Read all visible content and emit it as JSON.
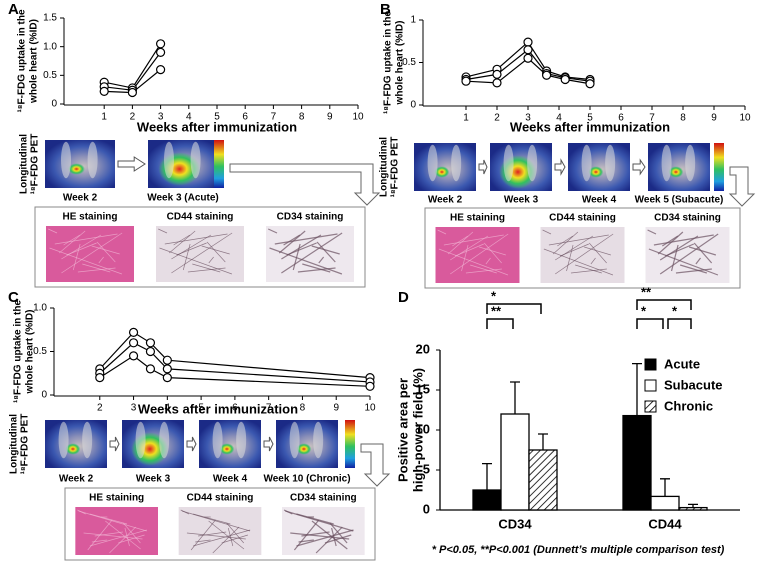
{
  "chart_data": [
    {
      "type": "line",
      "panel": "A",
      "ylabel": [
        "¹⁸F-FDG uptake in the",
        "whole heart (%ID)"
      ],
      "xlabel": "Weeks after immunization",
      "x": [
        1,
        2,
        3
      ],
      "series": [
        {
          "color": "#000000",
          "values": [
            0.38,
            0.28,
            1.05
          ]
        },
        {
          "color": "#000000",
          "values": [
            0.3,
            0.24,
            0.9
          ]
        },
        {
          "color": "#000000",
          "values": [
            0.22,
            0.2,
            0.6
          ]
        }
      ],
      "xlim": [
        0,
        10
      ],
      "xticks": [
        1,
        2,
        3,
        4,
        5,
        6,
        7,
        8,
        9,
        10
      ],
      "ylim": [
        0,
        1.5
      ],
      "yticks": [
        0,
        0.5,
        {
          "value": 1,
          "label": "1.0"
        },
        1.5
      ],
      "pet_label": [
        "Longitudinal",
        "¹⁸F-FDG PET"
      ],
      "pet_captions": [
        "Week 2",
        "Week 3 (Acute)"
      ],
      "caption_colors": [
        "#000000",
        "#d8322c"
      ],
      "staining": [
        "HE staining",
        "CD44 staining",
        "CD34 staining"
      ]
    },
    {
      "type": "line",
      "panel": "B",
      "ylabel": [
        "¹⁸F-FDG uptake in the",
        "whole heart (%ID)"
      ],
      "xlabel": "Weeks after immunization",
      "x": [
        1,
        2,
        3,
        3.6,
        4.2,
        5
      ],
      "series": [
        {
          "color": "#000000",
          "values": [
            0.33,
            0.42,
            0.74,
            0.4,
            0.33,
            0.3
          ]
        },
        {
          "color": "#000000",
          "values": [
            0.3,
            0.36,
            0.65,
            0.37,
            0.32,
            0.28
          ]
        },
        {
          "color": "#000000",
          "values": [
            0.28,
            0.26,
            0.55,
            0.35,
            0.3,
            0.25
          ]
        }
      ],
      "xlim": [
        0,
        10
      ],
      "xticks": [
        1,
        2,
        3,
        4,
        5,
        6,
        7,
        8,
        9,
        10
      ],
      "ylim": [
        0,
        1
      ],
      "yticks": [
        0,
        0.5,
        1
      ],
      "pet_label": [
        "Longitudinal",
        "¹⁸F-FDG PET"
      ],
      "pet_captions": [
        "Week 2",
        "Week 3",
        "Week 4",
        "Week 5 (Subacute)"
      ],
      "caption_colors": [
        "#000000",
        "#000000",
        "#000000",
        "#d8322c"
      ],
      "staining": [
        "HE staining",
        "CD44 staining",
        "CD34 staining"
      ]
    },
    {
      "type": "line",
      "panel": "C",
      "ylabel": [
        "¹⁸F-FDG uptake in the",
        "whole heart (%ID)"
      ],
      "xlabel": "Weeks after immunization",
      "x": [
        2,
        3,
        3.5,
        4,
        10
      ],
      "series": [
        {
          "color": "#000000",
          "values": [
            0.3,
            0.72,
            0.6,
            0.4,
            0.2
          ]
        },
        {
          "color": "#000000",
          "values": [
            0.25,
            0.6,
            0.5,
            0.3,
            0.15
          ]
        },
        {
          "color": "#000000",
          "values": [
            0.2,
            0.45,
            0.3,
            0.2,
            0.1
          ]
        }
      ],
      "xlim": [
        1,
        10
      ],
      "xticks": [
        2,
        3,
        4,
        5,
        6,
        7,
        8,
        9,
        10
      ],
      "ylim": [
        0,
        1
      ],
      "yticks": [
        0,
        0.5,
        {
          "value": 1,
          "label": "1.0"
        }
      ],
      "pet_label": [
        "Longitudinal",
        "¹⁸F-FDG PET"
      ],
      "pet_captions": [
        "Week 2",
        "Week 3",
        "Week 4",
        "Week 10 (Chronic)"
      ],
      "caption_colors": [
        "#000000",
        "#000000",
        "#000000",
        "#d8322c"
      ],
      "staining": [
        "HE staining",
        "CD44 staining",
        "CD34 staining"
      ]
    },
    {
      "type": "bar",
      "panel": "D",
      "ylabel": [
        "Positive area per",
        "high-power field (%)"
      ],
      "categories": [
        "CD34",
        "CD44"
      ],
      "series": [
        {
          "name": "Acute",
          "color": "#000000",
          "values": [
            2.5,
            11.8
          ],
          "errors": [
            3.3,
            6.5
          ]
        },
        {
          "name": "Subacute",
          "color": "#ffffff",
          "values": [
            12,
            1.7
          ],
          "errors": [
            4,
            2.2
          ]
        },
        {
          "name": "Chronic",
          "color": "#ffffff",
          "pattern": "hatch",
          "values": [
            7.5,
            0.3
          ],
          "errors": [
            2,
            0.4
          ]
        }
      ],
      "ylim": [
        0,
        20
      ],
      "yticks": [
        0,
        5,
        10,
        15,
        20
      ],
      "significance": [
        {
          "group": 0,
          "pair": [
            0,
            2
          ],
          "label": "*"
        },
        {
          "group": 0,
          "pair": [
            0,
            1
          ],
          "label": "**"
        },
        {
          "group": 1,
          "pair": [
            0,
            2
          ],
          "label": "**"
        },
        {
          "group": 1,
          "pair": [
            0,
            1
          ],
          "label": "*"
        },
        {
          "group": 1,
          "pair": [
            1,
            2
          ],
          "label": "*"
        }
      ],
      "footnote": "* P<0.05, **P<0.001 (Dunnett’s multiple comparison test)"
    }
  ]
}
